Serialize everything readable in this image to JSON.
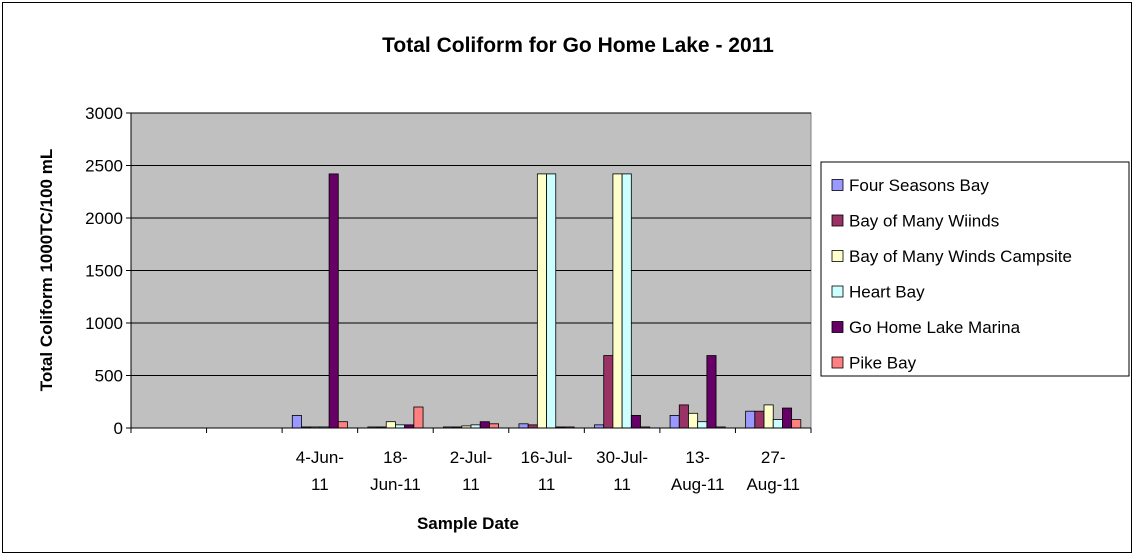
{
  "chart_data": {
    "type": "bar",
    "title": "Total Coliform for Go Home Lake - 2011",
    "xlabel": "Sample Date",
    "ylabel": "Total Coliform 1000TC/100 mL",
    "ylim": [
      0,
      3000
    ],
    "yticks": [
      0,
      500,
      1000,
      1500,
      2000,
      2500,
      3000
    ],
    "categories": [
      [
        "",
        ""
      ],
      [
        "",
        ""
      ],
      [
        "4-Jun-",
        "11"
      ],
      [
        "18-",
        "Jun-11"
      ],
      [
        "2-Jul-",
        "11"
      ],
      [
        "16-Jul-",
        "11"
      ],
      [
        "30-Jul-",
        "11"
      ],
      [
        "13-",
        "Aug-11"
      ],
      [
        "27-",
        "Aug-11"
      ]
    ],
    "series": [
      {
        "name": "Four Seasons Bay",
        "color": "#9999FF",
        "values": [
          null,
          null,
          120,
          10,
          10,
          40,
          30,
          120,
          160
        ]
      },
      {
        "name": "Bay of Many Wiinds",
        "color": "#993366",
        "values": [
          null,
          null,
          10,
          10,
          10,
          30,
          690,
          220,
          160
        ]
      },
      {
        "name": "Bay of Many Winds Campsite",
        "color": "#FFFFCC",
        "values": [
          null,
          null,
          10,
          60,
          20,
          2420,
          2420,
          140,
          220
        ]
      },
      {
        "name": "Heart Bay",
        "color": "#CCFFFF",
        "values": [
          null,
          null,
          10,
          30,
          30,
          2420,
          2420,
          60,
          80
        ]
      },
      {
        "name": "Go Home Lake Marina",
        "color": "#660066",
        "values": [
          null,
          null,
          2420,
          30,
          60,
          10,
          120,
          690,
          190
        ]
      },
      {
        "name": "Pike Bay",
        "color": "#FF8080",
        "values": [
          null,
          null,
          60,
          200,
          40,
          10,
          10,
          10,
          80
        ]
      }
    ],
    "grid": true,
    "legend_position": "right",
    "plot_background": "#C0C0C0"
  }
}
